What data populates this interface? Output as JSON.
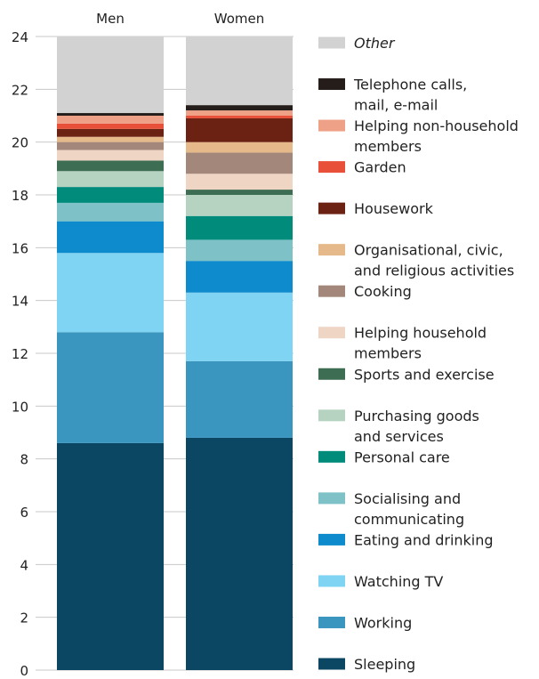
{
  "chart_data": {
    "type": "bar",
    "stacked": true,
    "title": "",
    "xlabel": "",
    "ylabel": "",
    "categories": [
      "Men",
      "Women"
    ],
    "ylim": [
      0,
      24
    ],
    "yticks": [
      0,
      2,
      4,
      6,
      8,
      10,
      12,
      14,
      16,
      18,
      20,
      22,
      24
    ],
    "grid": true,
    "legend_position": "right",
    "series": [
      {
        "name": "Sleeping",
        "color": "#0b4763",
        "values": [
          8.6,
          8.8
        ]
      },
      {
        "name": "Working",
        "color": "#3a95bf",
        "values": [
          4.2,
          2.9
        ]
      },
      {
        "name": "Watching TV",
        "color": "#7fd3f3",
        "values": [
          3.0,
          2.6
        ]
      },
      {
        "name": "Eating and drinking",
        "color": "#0d8bcc",
        "values": [
          1.2,
          1.2
        ]
      },
      {
        "name": "Socialising and communicating",
        "color": "#7ec2c8",
        "values": [
          0.7,
          0.8
        ]
      },
      {
        "name": "Personal care",
        "color": "#008b7b",
        "values": [
          0.6,
          0.9
        ]
      },
      {
        "name": "Purchasing goods and services",
        "color": "#b6d3c1",
        "values": [
          0.6,
          0.8
        ]
      },
      {
        "name": "Sports and exercise",
        "color": "#3d6d52",
        "values": [
          0.4,
          0.2
        ]
      },
      {
        "name": "Helping household members",
        "color": "#eed5c4",
        "values": [
          0.4,
          0.6
        ]
      },
      {
        "name": "Cooking",
        "color": "#a3877a",
        "values": [
          0.3,
          0.8
        ]
      },
      {
        "name": "Organisational, civic, and religious activities",
        "color": "#e5b98a",
        "values": [
          0.2,
          0.4
        ]
      },
      {
        "name": "Housework",
        "color": "#6b2212",
        "values": [
          0.3,
          0.9
        ]
      },
      {
        "name": "Garden",
        "color": "#e8503a",
        "values": [
          0.2,
          0.1
        ]
      },
      {
        "name": "Helping non-household members",
        "color": "#efa187",
        "values": [
          0.3,
          0.2
        ]
      },
      {
        "name": "Telephone calls, mail, e-mail",
        "color": "#251d19",
        "values": [
          0.1,
          0.2
        ]
      },
      {
        "name": "Other",
        "color": "#d2d2d2",
        "values": [
          2.9,
          2.6
        ],
        "italic": true
      }
    ],
    "legend_labels": [
      {
        "key": "Other",
        "lines": [
          "Other"
        ],
        "italic": true
      },
      {
        "key": "Telephone calls, mail, e-mail",
        "lines": [
          "Telephone calls,",
          "mail, e-mail"
        ]
      },
      {
        "key": "Helping non-household members",
        "lines": [
          "Helping non-household",
          "members"
        ]
      },
      {
        "key": "Garden",
        "lines": [
          "Garden"
        ]
      },
      {
        "key": "Housework",
        "lines": [
          "Housework"
        ]
      },
      {
        "key": "Organisational, civic, and religious activities",
        "lines": [
          "Organisational, civic,",
          "and religious activities"
        ]
      },
      {
        "key": "Cooking",
        "lines": [
          "Cooking"
        ]
      },
      {
        "key": "Helping household members",
        "lines": [
          "Helping household",
          "members"
        ]
      },
      {
        "key": "Sports and exercise",
        "lines": [
          "Sports and exercise"
        ]
      },
      {
        "key": "Purchasing goods and services",
        "lines": [
          "Purchasing goods",
          "and services"
        ]
      },
      {
        "key": "Personal care",
        "lines": [
          "Personal care"
        ]
      },
      {
        "key": "Socialising and communicating",
        "lines": [
          "Socialising and",
          "communicating"
        ]
      },
      {
        "key": "Eating and drinking",
        "lines": [
          "Eating and drinking"
        ]
      },
      {
        "key": "Watching TV",
        "lines": [
          "Watching TV"
        ]
      },
      {
        "key": "Working",
        "lines": [
          "Working"
        ]
      },
      {
        "key": "Sleeping",
        "lines": [
          "Sleeping"
        ]
      }
    ]
  }
}
